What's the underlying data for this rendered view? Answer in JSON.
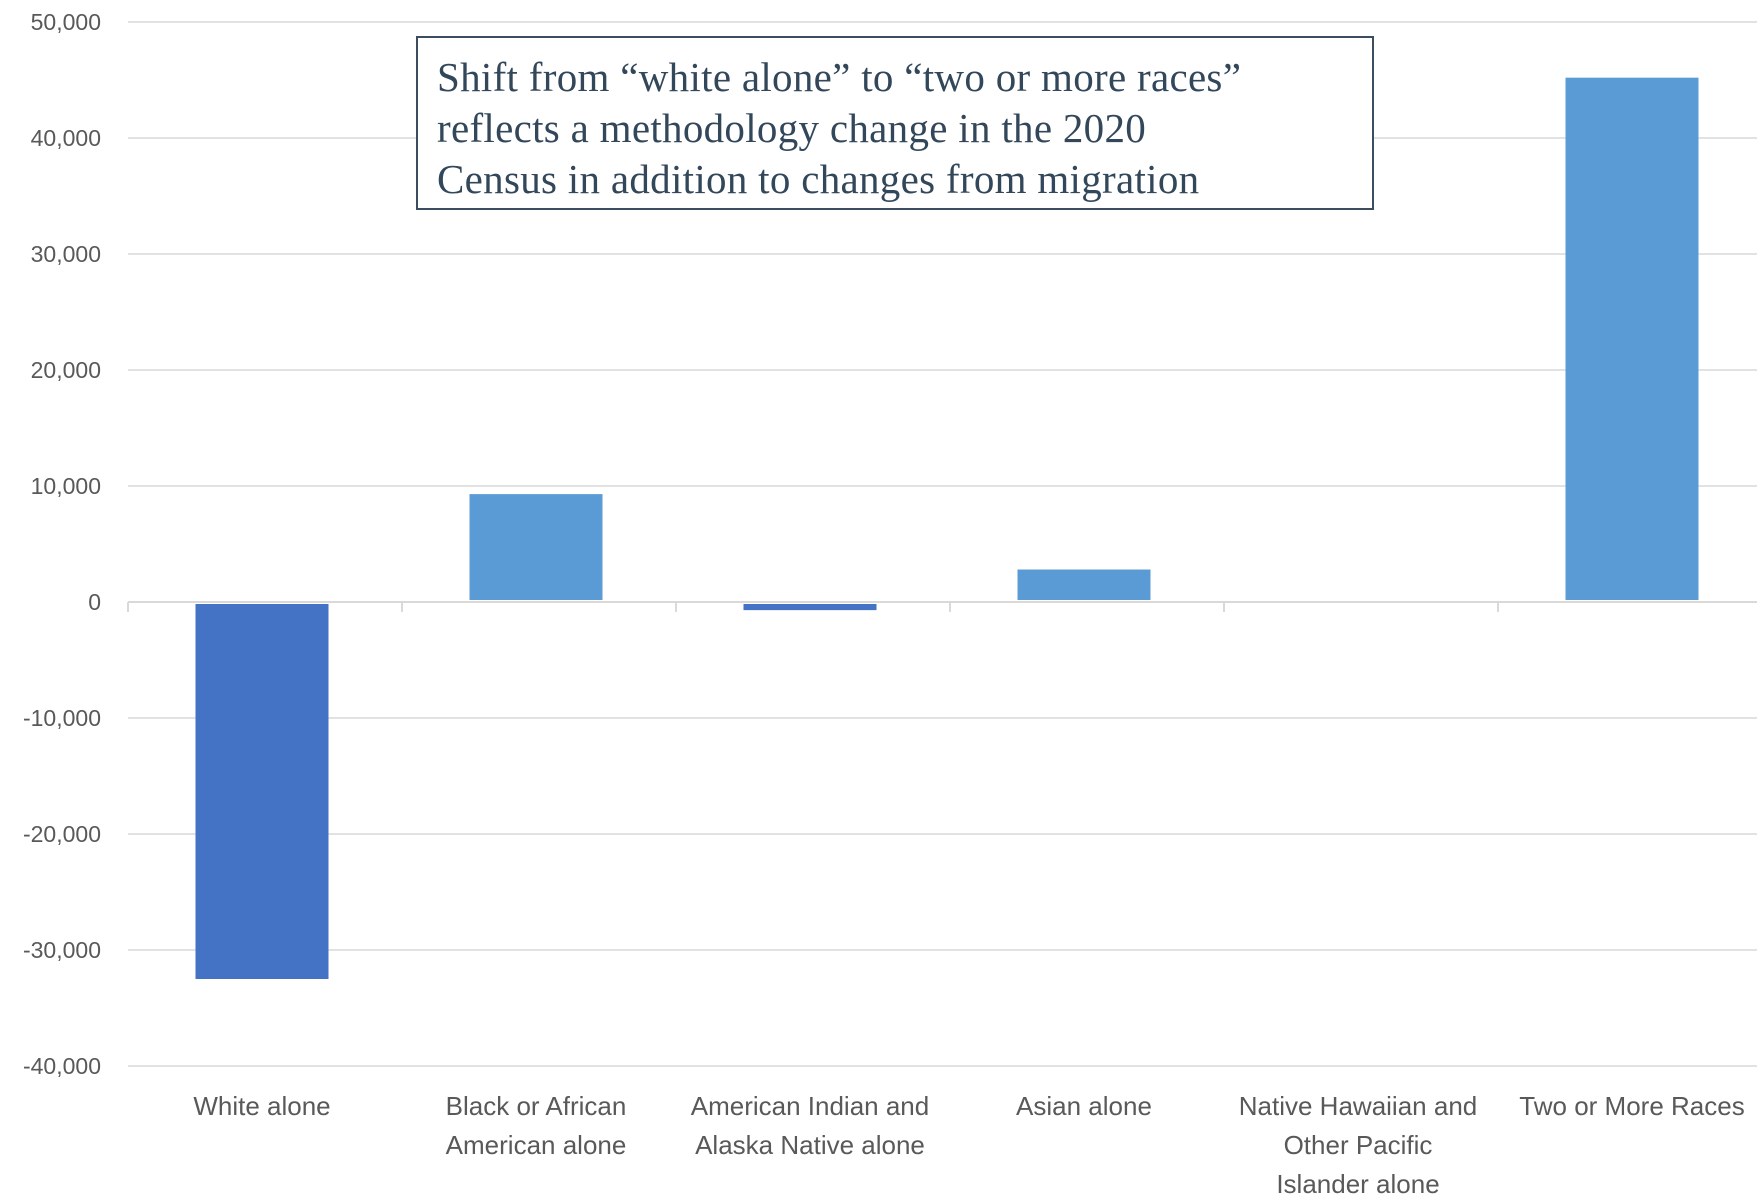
{
  "chart_data": {
    "type": "bar",
    "title": "",
    "xlabel": "",
    "ylabel": "",
    "ylim": [
      -40000,
      50000
    ],
    "yticks": [
      {
        "value": 50000,
        "label": "50,000"
      },
      {
        "value": 40000,
        "label": "40,000"
      },
      {
        "value": 30000,
        "label": "30,000"
      },
      {
        "value": 20000,
        "label": "20,000"
      },
      {
        "value": 10000,
        "label": "10,000"
      },
      {
        "value": 0,
        "label": "0"
      },
      {
        "value": -10000,
        "label": "-10,000"
      },
      {
        "value": -20000,
        "label": "-20,000"
      },
      {
        "value": -30000,
        "label": "-30,000"
      },
      {
        "value": -40000,
        "label": "-40,000"
      }
    ],
    "categories": [
      [
        "White alone"
      ],
      [
        "Black or African",
        "American alone"
      ],
      [
        "American Indian and",
        "Alaska Native alone"
      ],
      [
        "Asian alone"
      ],
      [
        "Native Hawaiian and",
        "Other Pacific",
        "Islander alone"
      ],
      [
        "Two or More Races"
      ]
    ],
    "values": [
      -32500,
      9300,
      -700,
      2800,
      0,
      45200
    ],
    "colors": {
      "negative": "#4472c4",
      "positive": "#5b9bd5"
    },
    "grid": true,
    "legend": "none",
    "annotation": {
      "lines": [
        "Shift from “white alone” to “two or more races”",
        "reflects a methodology change in the 2020",
        "Census in addition to changes from migration"
      ]
    }
  }
}
